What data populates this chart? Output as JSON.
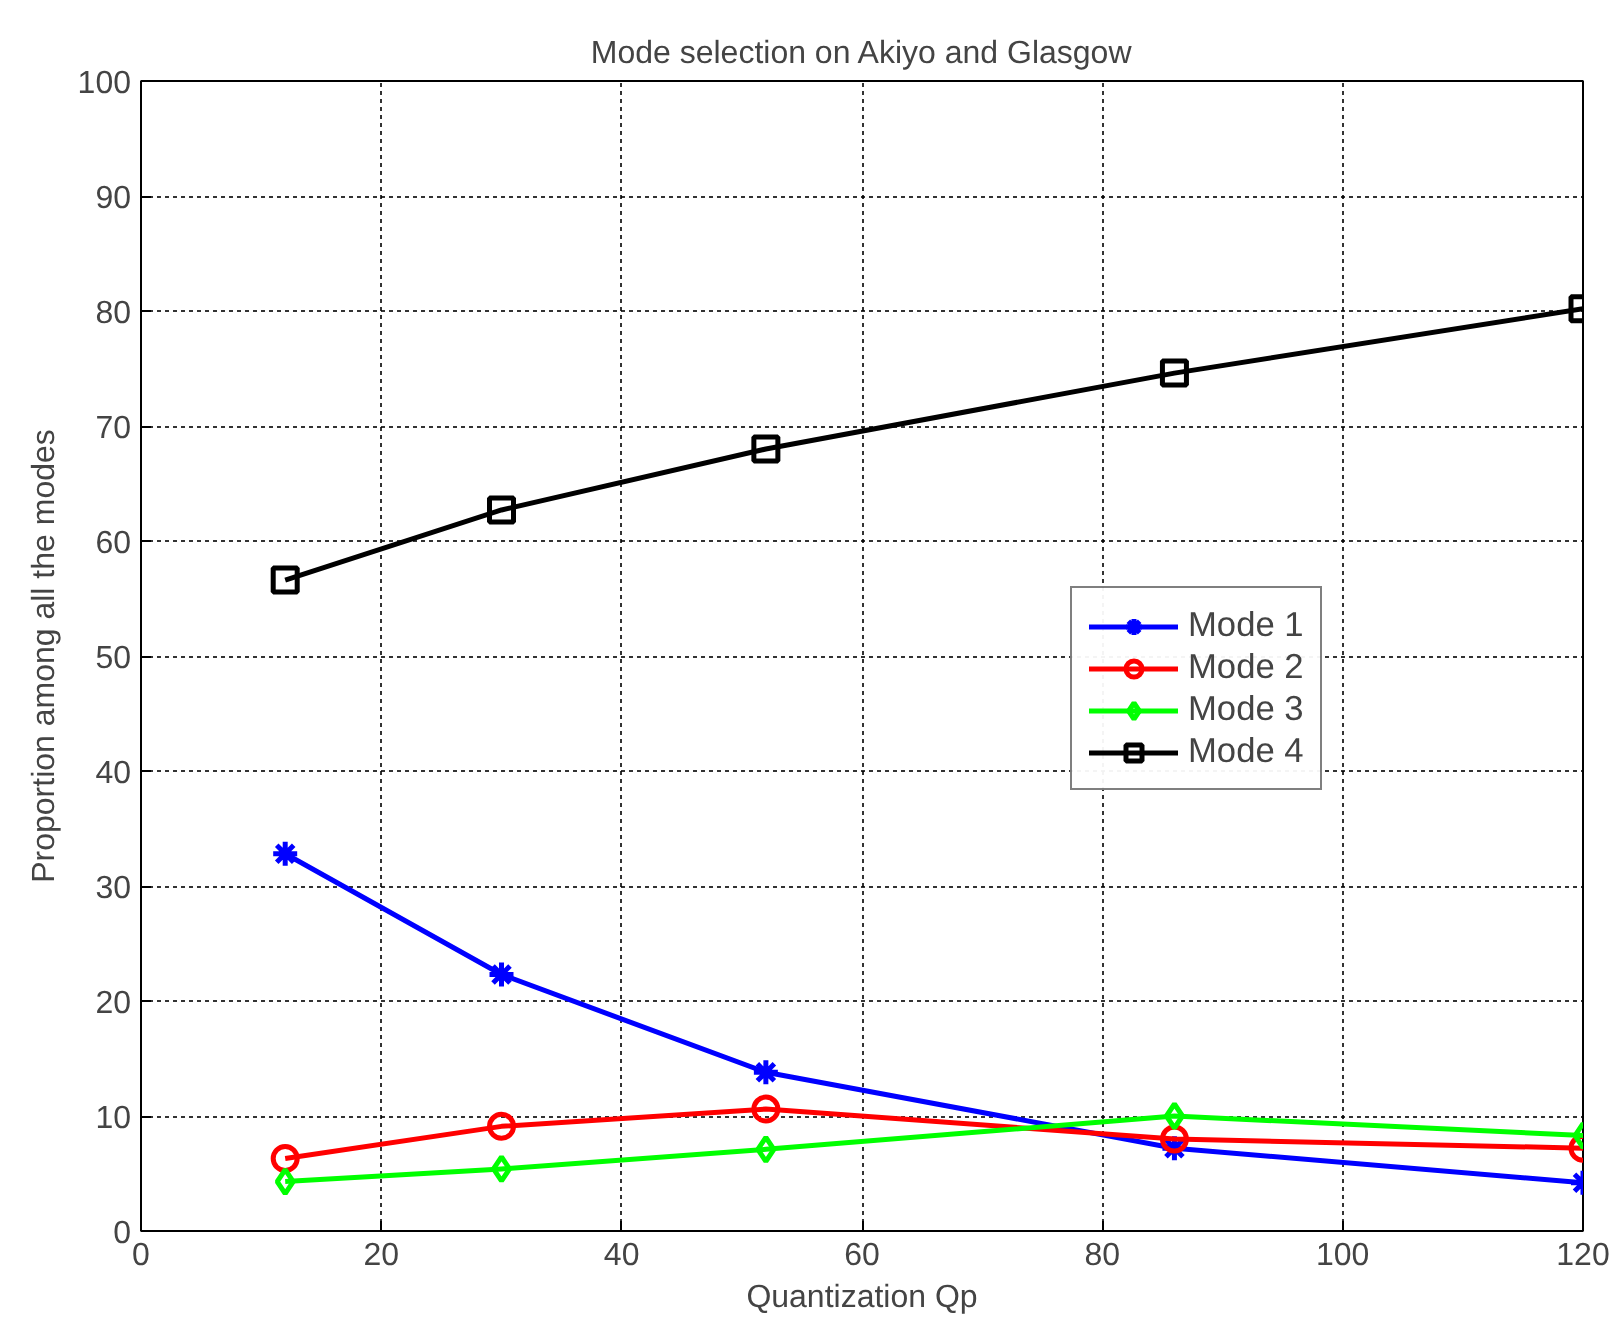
{
  "chart_data": {
    "type": "line",
    "title": "Mode selection on Akiyo and Glasgow",
    "xlabel": "Quantization Qp",
    "ylabel": "Proportion among all the modes",
    "x": [
      12,
      30,
      52,
      86,
      120
    ],
    "series": [
      {
        "name": "Mode 1",
        "color": "#0000ff",
        "marker": "cross",
        "values": [
          32.8,
          22.3,
          13.8,
          7.2,
          4.2
        ]
      },
      {
        "name": "Mode 2",
        "color": "#ff0000",
        "marker": "circle",
        "values": [
          6.3,
          9.1,
          10.6,
          8.0,
          7.2
        ]
      },
      {
        "name": "Mode 3",
        "color": "#00ff00",
        "marker": "diamond",
        "values": [
          4.3,
          5.4,
          7.1,
          10.0,
          8.3
        ]
      },
      {
        "name": "Mode 4",
        "color": "#000000",
        "marker": "square",
        "values": [
          56.6,
          62.7,
          68.0,
          74.6,
          80.2
        ]
      }
    ],
    "xlim": [
      0,
      120
    ],
    "ylim": [
      0,
      100
    ],
    "xticks": [
      0,
      20,
      40,
      60,
      80,
      100,
      120
    ],
    "yticks": [
      0,
      10,
      20,
      30,
      40,
      50,
      60,
      70,
      80,
      90,
      100
    ],
    "grid": true,
    "legend": "right",
    "line_style": "solid"
  }
}
